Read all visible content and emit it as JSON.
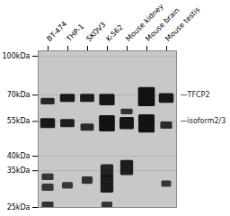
{
  "chart_data": {
    "type": "gel",
    "categories": [
      "BT-474",
      "THP-1",
      "SKOV3",
      "K-562",
      "Mouse kidney",
      "Mouse brain",
      "Mouse testis"
    ],
    "log": "y",
    "ylim": [
      25,
      105
    ],
    "yticks": [
      {
        "value": 100,
        "label": "100kDa"
      },
      {
        "value": 70,
        "label": "70kDa"
      },
      {
        "value": 55,
        "label": "55kDa"
      },
      {
        "value": 40,
        "label": "40kDa"
      },
      {
        "value": 35,
        "label": "35kDa"
      },
      {
        "value": 25,
        "label": "25kDa"
      }
    ],
    "grid": true,
    "annotations": [
      {
        "text": "—TFCP2",
        "mw": 70
      },
      {
        "text": "—isoform2/3",
        "mw": 55
      }
    ],
    "bands": [
      {
        "lane": "BT-474",
        "mw": 66,
        "intensity": 0.55,
        "width": 0.7,
        "height": 4
      },
      {
        "lane": "BT-474",
        "mw": 54,
        "intensity": 0.8,
        "width": 0.75,
        "height": 5
      },
      {
        "lane": "BT-474",
        "mw": 33,
        "intensity": 0.22,
        "width": 0.6,
        "height": 2
      },
      {
        "lane": "BT-474",
        "mw": 30,
        "intensity": 0.18,
        "width": 0.6,
        "height": 2
      },
      {
        "lane": "BT-474",
        "mw": 25.5,
        "intensity": 0.28,
        "width": 0.6,
        "height": 1.5
      },
      {
        "lane": "THP-1",
        "mw": 68,
        "intensity": 0.82,
        "width": 0.75,
        "height": 5
      },
      {
        "lane": "THP-1",
        "mw": 54,
        "intensity": 0.7,
        "width": 0.72,
        "height": 4
      },
      {
        "lane": "THP-1",
        "mw": 30.5,
        "intensity": 0.18,
        "width": 0.55,
        "height": 1.8
      },
      {
        "lane": "SKOV3",
        "mw": 68,
        "intensity": 0.75,
        "width": 0.72,
        "height": 5
      },
      {
        "lane": "SKOV3",
        "mw": 52,
        "intensity": 0.48,
        "width": 0.68,
        "height": 3.5
      },
      {
        "lane": "SKOV3",
        "mw": 32,
        "intensity": 0.32,
        "width": 0.55,
        "height": 2.2
      },
      {
        "lane": "K-562",
        "mw": 67,
        "intensity": 0.88,
        "width": 0.78,
        "height": 7
      },
      {
        "lane": "K-562",
        "mw": 54,
        "intensity": 0.96,
        "width": 0.8,
        "height": 8
      },
      {
        "lane": "K-562",
        "mw": 35,
        "intensity": 0.58,
        "width": 0.65,
        "height": 4
      },
      {
        "lane": "K-562",
        "mw": 31,
        "intensity": 0.75,
        "width": 0.65,
        "height": 5
      },
      {
        "lane": "K-562",
        "mw": 25.5,
        "intensity": 0.22,
        "width": 0.55,
        "height": 1.5
      },
      {
        "lane": "Mouse kidney",
        "mw": 60,
        "intensity": 0.3,
        "width": 0.6,
        "height": 3
      },
      {
        "lane": "Mouse kidney",
        "mw": 54,
        "intensity": 0.88,
        "width": 0.72,
        "height": 6
      },
      {
        "lane": "Mouse kidney",
        "mw": 36,
        "intensity": 0.72,
        "width": 0.65,
        "height": 5
      },
      {
        "lane": "Mouse brain",
        "mw": 69,
        "intensity": 0.98,
        "width": 0.85,
        "height": 12
      },
      {
        "lane": "Mouse brain",
        "mw": 54,
        "intensity": 0.94,
        "width": 0.82,
        "height": 9
      },
      {
        "lane": "Mouse testis",
        "mw": 68,
        "intensity": 0.82,
        "width": 0.75,
        "height": 6
      },
      {
        "lane": "Mouse testis",
        "mw": 53,
        "intensity": 0.45,
        "width": 0.6,
        "height": 3.5
      },
      {
        "lane": "Mouse testis",
        "mw": 31,
        "intensity": 0.2,
        "width": 0.5,
        "height": 1.8
      }
    ]
  }
}
